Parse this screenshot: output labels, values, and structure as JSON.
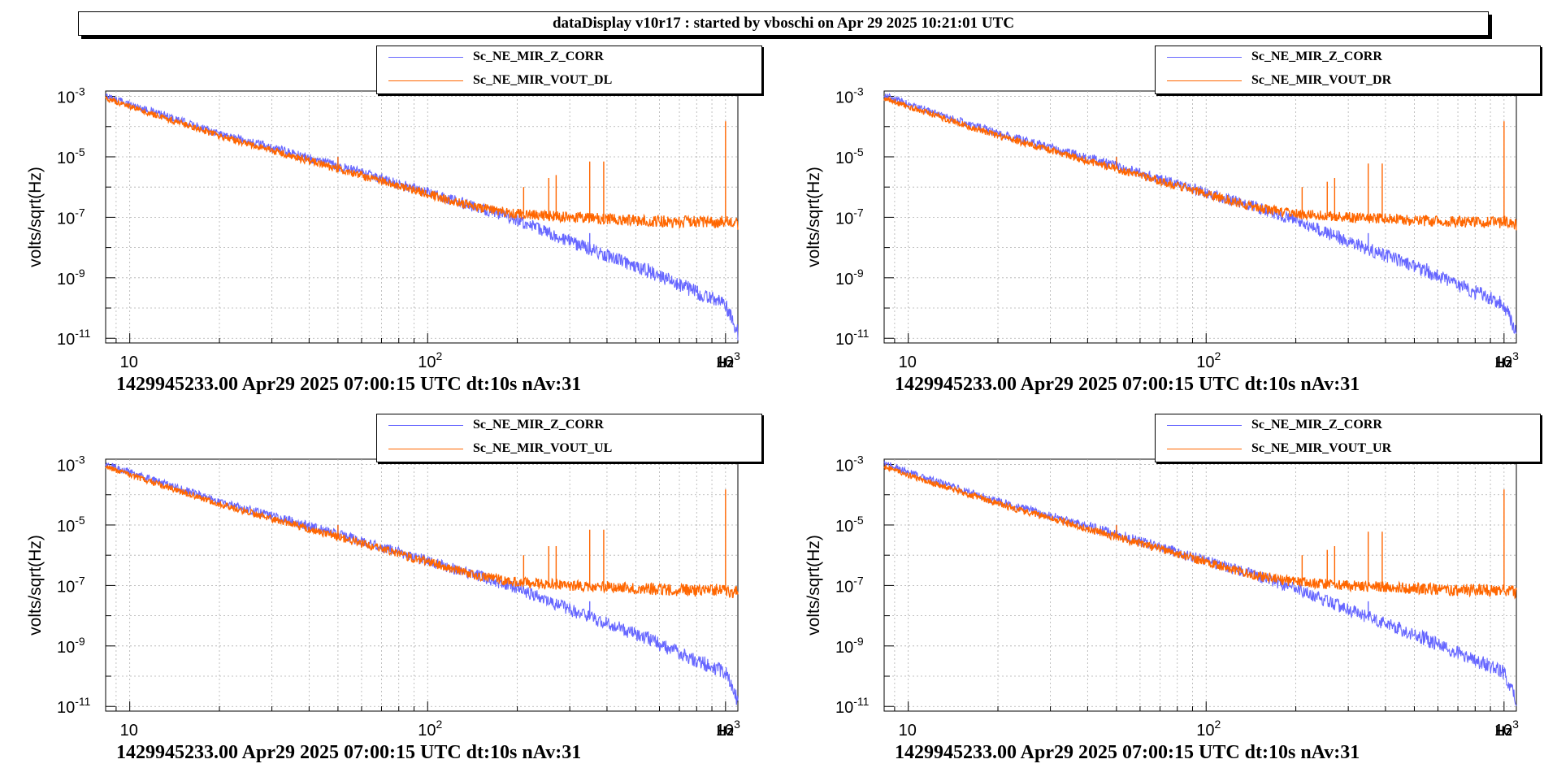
{
  "header": {
    "title": "dataDisplay v10r17 : started by vboschi on Apr 29 2025 10:21:01 UTC"
  },
  "colors": {
    "series_z": "#6666ff",
    "series_vout": "#ff6600"
  },
  "chart_data": [
    {
      "type": "line",
      "ylabel": "volts/sqrt(Hz)",
      "xlabel": "Hz",
      "xscale": "log",
      "yscale": "log",
      "xlim": [
        8.3,
        1100
      ],
      "ylim": [
        7e-12,
        0.0015
      ],
      "x_ticks": [
        "10",
        "10^2",
        "10^3"
      ],
      "y_ticks": [
        "10^-3",
        "10^-5",
        "10^-7",
        "10^-9",
        "10^-11"
      ],
      "grid": true,
      "legend_position": "top-right",
      "caption": "1429945233.00 Apr29 2025 07:00:15 UTC dt:10s nAv:31",
      "series": [
        {
          "name": "Sc_NE_MIR_Z_CORR",
          "color": "#6666ff",
          "x": [
            8.5,
            10,
            20,
            50,
            100,
            150,
            200,
            300,
            500,
            700,
            1000,
            1100
          ],
          "y": [
            0.001,
            0.00055,
            6e-05,
            5e-06,
            6.5e-07,
            2e-07,
            8e-08,
            1.6e-08,
            2.4e-09,
            6e-10,
            1.3e-10,
            1.5e-11
          ],
          "peaks": [
            {
              "x": 50,
              "y": 1e-05
            },
            {
              "x": 350,
              "y": 3e-08
            },
            {
              "x": 550,
              "y": 3e-09
            }
          ]
        },
        {
          "name": "Sc_NE_MIR_VOUT_DL",
          "color": "#ff6600",
          "x": [
            8.5,
            10,
            20,
            50,
            100,
            150,
            200,
            300,
            500,
            700,
            1000,
            1100
          ],
          "y": [
            0.0008,
            0.00045,
            5e-05,
            4e-06,
            6e-07,
            2e-07,
            1.3e-07,
            1e-07,
            8e-08,
            7e-08,
            7e-08,
            6e-08
          ],
          "peaks": [
            {
              "x": 50,
              "y": 1e-05
            },
            {
              "x": 210,
              "y": 1e-06
            },
            {
              "x": 255,
              "y": 2e-06
            },
            {
              "x": 270,
              "y": 2.5e-06
            },
            {
              "x": 350,
              "y": 7e-06
            },
            {
              "x": 390,
              "y": 7e-06
            },
            {
              "x": 1000,
              "y": 0.00015
            }
          ]
        }
      ]
    },
    {
      "type": "line",
      "ylabel": "volts/sqrt(Hz)",
      "xlabel": "Hz",
      "xscale": "log",
      "yscale": "log",
      "xlim": [
        8.3,
        1100
      ],
      "ylim": [
        7e-12,
        0.0015
      ],
      "x_ticks": [
        "10",
        "10^2",
        "10^3"
      ],
      "y_ticks": [
        "10^-3",
        "10^-5",
        "10^-7",
        "10^-9",
        "10^-11"
      ],
      "grid": true,
      "legend_position": "top-right",
      "caption": "1429945233.00 Apr29 2025 07:00:15 UTC dt:10s nAv:31",
      "series": [
        {
          "name": "Sc_NE_MIR_Z_CORR",
          "color": "#6666ff",
          "x": [
            8.5,
            10,
            20,
            50,
            100,
            150,
            200,
            300,
            500,
            700,
            1000,
            1100
          ],
          "y": [
            0.001,
            0.00055,
            6e-05,
            5e-06,
            6.5e-07,
            2e-07,
            8e-08,
            1.6e-08,
            2.4e-09,
            6e-10,
            1.3e-10,
            1.5e-11
          ],
          "peaks": [
            {
              "x": 50,
              "y": 1e-05
            },
            {
              "x": 350,
              "y": 3e-08
            },
            {
              "x": 550,
              "y": 3e-09
            }
          ]
        },
        {
          "name": "Sc_NE_MIR_VOUT_DR",
          "color": "#ff6600",
          "x": [
            8.5,
            10,
            20,
            50,
            100,
            150,
            200,
            300,
            500,
            700,
            1000,
            1100
          ],
          "y": [
            0.0008,
            0.00045,
            5e-05,
            4e-06,
            6e-07,
            2e-07,
            1.3e-07,
            1e-07,
            8e-08,
            7e-08,
            7e-08,
            6e-08
          ],
          "peaks": [
            {
              "x": 50,
              "y": 1e-05
            },
            {
              "x": 210,
              "y": 1e-06
            },
            {
              "x": 255,
              "y": 1.5e-06
            },
            {
              "x": 270,
              "y": 2e-06
            },
            {
              "x": 350,
              "y": 6e-06
            },
            {
              "x": 390,
              "y": 6e-06
            },
            {
              "x": 1000,
              "y": 0.00015
            }
          ]
        }
      ]
    },
    {
      "type": "line",
      "ylabel": "volts/sqrt(Hz)",
      "xlabel": "Hz",
      "xscale": "log",
      "yscale": "log",
      "xlim": [
        8.3,
        1100
      ],
      "ylim": [
        7e-12,
        0.0015
      ],
      "x_ticks": [
        "10",
        "10^2",
        "10^3"
      ],
      "y_ticks": [
        "10^-3",
        "10^-5",
        "10^-7",
        "10^-9",
        "10^-11"
      ],
      "grid": true,
      "legend_position": "top-right",
      "caption": "1429945233.00 Apr29 2025 07:00:15 UTC dt:10s nAv:31",
      "series": [
        {
          "name": "Sc_NE_MIR_Z_CORR",
          "color": "#6666ff",
          "x": [
            8.5,
            10,
            20,
            50,
            100,
            150,
            200,
            300,
            500,
            700,
            1000,
            1100
          ],
          "y": [
            0.001,
            0.00055,
            6e-05,
            5e-06,
            6.5e-07,
            2e-07,
            8e-08,
            1.6e-08,
            2.4e-09,
            6e-10,
            1.3e-10,
            1.5e-11
          ],
          "peaks": [
            {
              "x": 50,
              "y": 1e-05
            },
            {
              "x": 350,
              "y": 3e-08
            },
            {
              "x": 550,
              "y": 3e-09
            }
          ]
        },
        {
          "name": "Sc_NE_MIR_VOUT_UL",
          "color": "#ff6600",
          "x": [
            8.5,
            10,
            20,
            50,
            100,
            150,
            200,
            300,
            500,
            700,
            1000,
            1100
          ],
          "y": [
            0.0008,
            0.00045,
            5e-05,
            4e-06,
            6e-07,
            2e-07,
            1.3e-07,
            1e-07,
            8e-08,
            7e-08,
            7e-08,
            6e-08
          ],
          "peaks": [
            {
              "x": 50,
              "y": 1e-05
            },
            {
              "x": 210,
              "y": 1e-06
            },
            {
              "x": 255,
              "y": 2e-06
            },
            {
              "x": 270,
              "y": 2e-06
            },
            {
              "x": 350,
              "y": 7e-06
            },
            {
              "x": 390,
              "y": 7e-06
            },
            {
              "x": 1000,
              "y": 0.00015
            }
          ]
        }
      ]
    },
    {
      "type": "line",
      "ylabel": "volts/sqrt(Hz)",
      "xlabel": "Hz",
      "xscale": "log",
      "yscale": "log",
      "xlim": [
        8.3,
        1100
      ],
      "ylim": [
        7e-12,
        0.0015
      ],
      "x_ticks": [
        "10",
        "10^2",
        "10^3"
      ],
      "y_ticks": [
        "10^-3",
        "10^-5",
        "10^-7",
        "10^-9",
        "10^-11"
      ],
      "grid": true,
      "legend_position": "top-right",
      "caption": "1429945233.00 Apr29 2025 07:00:15 UTC dt:10s nAv:31",
      "series": [
        {
          "name": "Sc_NE_MIR_Z_CORR",
          "color": "#6666ff",
          "x": [
            8.5,
            10,
            20,
            50,
            100,
            150,
            200,
            300,
            500,
            700,
            1000,
            1100
          ],
          "y": [
            0.001,
            0.00055,
            6e-05,
            5e-06,
            6.5e-07,
            2e-07,
            8e-08,
            1.6e-08,
            2.4e-09,
            6e-10,
            1.3e-10,
            1.5e-11
          ],
          "peaks": [
            {
              "x": 50,
              "y": 1e-05
            },
            {
              "x": 350,
              "y": 3e-08
            },
            {
              "x": 550,
              "y": 3e-09
            }
          ]
        },
        {
          "name": "Sc_NE_MIR_VOUT_UR",
          "color": "#ff6600",
          "x": [
            8.5,
            10,
            20,
            50,
            100,
            150,
            200,
            300,
            500,
            700,
            1000,
            1100
          ],
          "y": [
            0.0008,
            0.00045,
            5e-05,
            4e-06,
            6e-07,
            2e-07,
            1.3e-07,
            1e-07,
            8e-08,
            7e-08,
            7e-08,
            6e-08
          ],
          "peaks": [
            {
              "x": 50,
              "y": 1e-05
            },
            {
              "x": 210,
              "y": 1e-06
            },
            {
              "x": 255,
              "y": 1.5e-06
            },
            {
              "x": 270,
              "y": 2e-06
            },
            {
              "x": 350,
              "y": 6e-06
            },
            {
              "x": 390,
              "y": 6e-06
            },
            {
              "x": 1000,
              "y": 0.00015
            }
          ]
        }
      ]
    }
  ]
}
